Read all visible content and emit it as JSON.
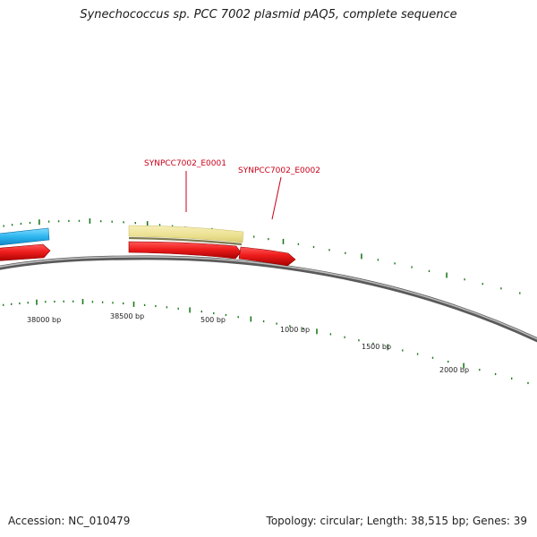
{
  "title": "Synechococcus sp. PCC 7002 plasmid pAQ5, complete sequence",
  "footer": {
    "accession": "Accession: NC_010479",
    "summary": "Topology: circular; Length: 38,515 bp; Genes: 39"
  },
  "gene_labels": [
    {
      "name": "SYNPCC7002_E0001"
    },
    {
      "name": "SYNPCC7002_E0002"
    }
  ],
  "coordinate_labels": [
    "38000 bp",
    "38500 bp",
    "500 bp",
    "1000 bp",
    "1500 bp",
    "2000 bp"
  ],
  "colors": {
    "backbone": "#8a8a8a",
    "tick": "#1e7a1e",
    "forward_gene": "#ee1c1c",
    "reverse_gene": "#2ab4ee",
    "highlight_feature": "#efe49a",
    "label": "#c8001a"
  }
}
